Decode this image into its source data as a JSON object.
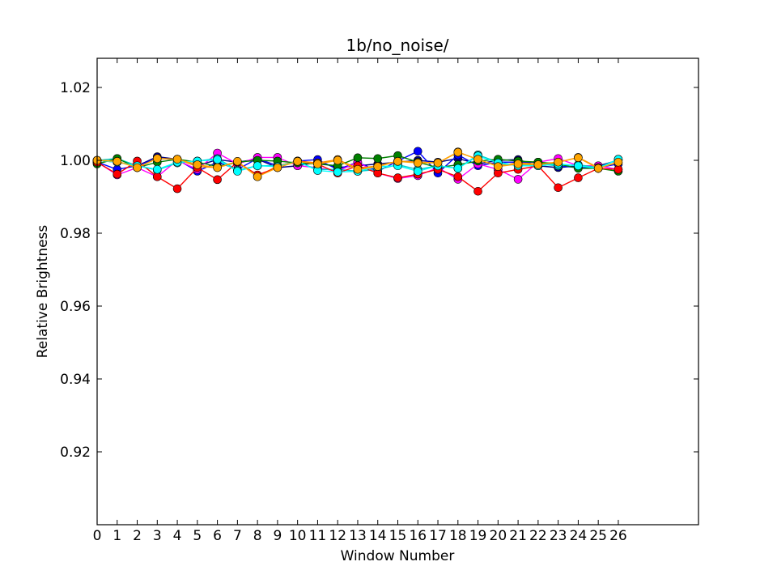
{
  "chart_data": {
    "type": "line",
    "title": "1b/no_noise/",
    "xlabel": "Window Number",
    "ylabel": "Relative Brightness",
    "xlim": [
      0,
      30
    ],
    "ylim": [
      0.9,
      1.028
    ],
    "x_ticks": [
      "0",
      "1",
      "2",
      "3",
      "4",
      "5",
      "6",
      "7",
      "8",
      "9",
      "10",
      "11",
      "12",
      "13",
      "14",
      "15",
      "16",
      "17",
      "18",
      "19",
      "20",
      "21",
      "22",
      "23",
      "24",
      "25",
      "26"
    ],
    "y_ticks": [
      "0.92",
      "0.94",
      "0.96",
      "0.98",
      "1.00",
      "1.02"
    ],
    "grid": false,
    "x": [
      0,
      1,
      2,
      3,
      4,
      5,
      6,
      7,
      8,
      9,
      10,
      11,
      12,
      13,
      14,
      15,
      16,
      17,
      18,
      19,
      20,
      21,
      22,
      23,
      24,
      25,
      26
    ],
    "series": [
      {
        "color": "#000080",
        "values": [
          1.0,
          0.9995,
          0.9985,
          1.001,
          1.0003,
          0.9985,
          1.0002,
          0.9995,
          1.0003,
          0.998,
          0.9985,
          0.9995,
          0.998,
          0.9985,
          0.999,
          0.9995,
          1.0,
          0.9995,
          1.0005,
          0.999,
          1.0,
          1.0002,
          0.9985,
          0.998,
          0.9985,
          0.9985,
          1.0
        ]
      },
      {
        "color": "#0000ff",
        "values": [
          0.9995,
          0.9975,
          0.9985,
          1.0005,
          1.0002,
          0.997,
          0.9995,
          0.9975,
          1.0005,
          0.9985,
          0.9998,
          1.0002,
          0.9975,
          0.9995,
          0.997,
          0.9998,
          1.0025,
          0.9965,
          1.0015,
          0.9985,
          0.9995,
          0.9995,
          0.9995,
          0.9985,
          0.998,
          0.998,
          0.999
        ]
      },
      {
        "color": "#ff00ff",
        "values": [
          0.9995,
          0.996,
          0.998,
          0.9955,
          1.0,
          0.9975,
          1.002,
          0.999,
          1.0008,
          1.0008,
          0.9985,
          0.998,
          0.997,
          0.9995,
          0.9965,
          0.995,
          0.9958,
          0.998,
          0.9948,
          0.999,
          0.9975,
          0.9948,
          0.9995,
          1.0005,
          0.9985,
          0.9985,
          0.9975
        ]
      },
      {
        "color": "#00ced1",
        "values": [
          1.0,
          1.0005,
          0.9985,
          0.9973,
          0.9993,
          0.9998,
          1.0005,
          0.9973,
          0.9985,
          0.9985,
          0.9995,
          0.9975,
          0.9975,
          0.997,
          0.9975,
          0.9988,
          0.9975,
          0.9985,
          0.9978,
          1.0015,
          0.9995,
          0.9985,
          0.999,
          0.9985,
          0.9988,
          0.998,
          1.0003
        ]
      },
      {
        "color": "#ff8c00",
        "values": [
          1.0,
          0.9998,
          0.998,
          1.0005,
          1.0003,
          0.9983,
          0.998,
          0.9995,
          0.9955,
          0.9985,
          0.9998,
          0.9993,
          1.0002,
          0.9978,
          0.9985,
          0.9998,
          0.9995,
          0.9993,
          1.0023,
          1.0002,
          0.9985,
          0.9993,
          0.999,
          0.9995,
          1.0008,
          0.998,
          0.9995
        ]
      },
      {
        "color": "#008000",
        "values": [
          0.999,
          1.0005,
          0.998,
          0.9995,
          1.0003,
          0.9995,
          0.9983,
          0.9995,
          1.0,
          0.9998,
          0.9993,
          0.999,
          0.9985,
          1.0007,
          1.0005,
          1.0013,
          0.9995,
          0.998,
          0.9988,
          0.9998,
          1.0003,
          0.9998,
          0.9995,
          0.999,
          0.9978,
          0.9978,
          0.997
        ]
      },
      {
        "color": "#ff0000",
        "values": [
          0.9995,
          0.9962,
          0.9998,
          0.9955,
          0.9922,
          0.998,
          0.9947,
          0.9995,
          0.996,
          0.998,
          0.9998,
          0.999,
          0.9965,
          0.9985,
          0.9965,
          0.9952,
          0.9962,
          0.9975,
          0.9955,
          0.9915,
          0.9965,
          0.9975,
          0.9985,
          0.9925,
          0.9952,
          0.9978,
          0.9975
        ]
      },
      {
        "color": "#00ffff",
        "values": [
          1.0,
          0.9995,
          0.9985,
          0.9975,
          0.9995,
          0.9998,
          1.0002,
          0.997,
          0.9985,
          0.9983,
          0.9997,
          0.9972,
          0.9968,
          0.997,
          0.9983,
          0.9985,
          0.997,
          0.9985,
          0.9978,
          1.0012,
          0.9993,
          0.9985,
          0.9985,
          0.999,
          0.9985,
          0.9978,
          1.0003
        ]
      },
      {
        "color": "#ffa500",
        "values": [
          1.0,
          0.9997,
          0.998,
          1.0005,
          1.0003,
          0.9988,
          0.998,
          0.9997,
          0.9955,
          0.998,
          0.9997,
          0.999,
          1.0,
          0.9975,
          0.9983,
          0.9997,
          0.9993,
          0.9993,
          1.0022,
          1.0003,
          0.9983,
          0.999,
          0.9988,
          0.9995,
          1.0007,
          0.9978,
          0.9995
        ]
      }
    ]
  }
}
